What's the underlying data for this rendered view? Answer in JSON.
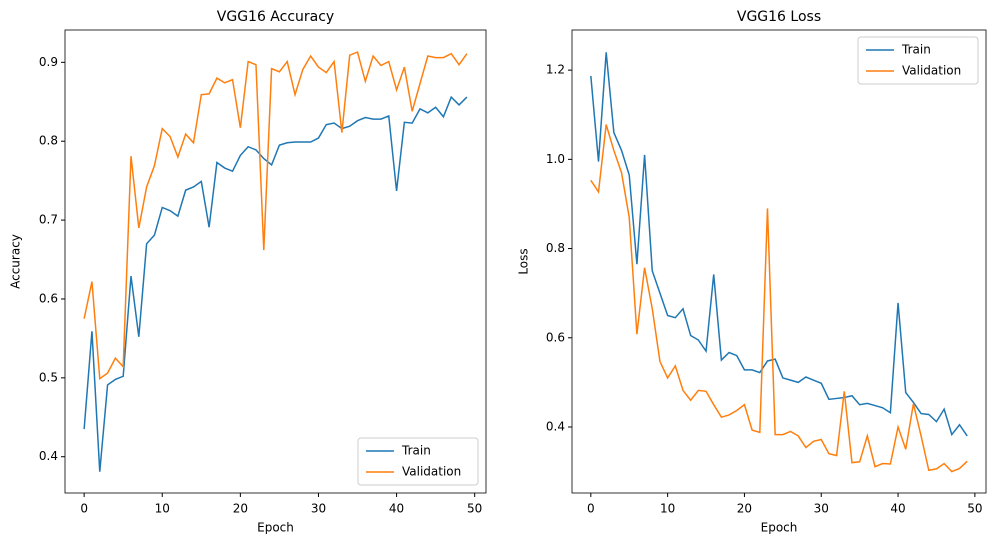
{
  "chart_data": [
    {
      "type": "line",
      "title": "VGG16 Accuracy",
      "x_label": "Epoch",
      "y_label": "Accuracy",
      "x": [
        0,
        1,
        2,
        3,
        4,
        5,
        6,
        7,
        8,
        9,
        10,
        11,
        12,
        13,
        14,
        15,
        16,
        17,
        18,
        19,
        20,
        21,
        22,
        23,
        24,
        25,
        26,
        27,
        28,
        29,
        30,
        31,
        32,
        33,
        34,
        35,
        36,
        37,
        38,
        39,
        40,
        41,
        42,
        43,
        44,
        45,
        46,
        47,
        48,
        49
      ],
      "series": [
        {
          "name": "Train",
          "color": "#1f77b4",
          "values": [
            0.435,
            0.559,
            0.381,
            0.491,
            0.498,
            0.502,
            0.629,
            0.552,
            0.67,
            0.681,
            0.716,
            0.712,
            0.705,
            0.738,
            0.742,
            0.749,
            0.691,
            0.773,
            0.766,
            0.762,
            0.782,
            0.793,
            0.789,
            0.778,
            0.77,
            0.795,
            0.798,
            0.799,
            0.799,
            0.799,
            0.804,
            0.821,
            0.823,
            0.816,
            0.819,
            0.826,
            0.83,
            0.828,
            0.828,
            0.832,
            0.737,
            0.824,
            0.823,
            0.841,
            0.836,
            0.843,
            0.831,
            0.856,
            0.846,
            0.856
          ]
        },
        {
          "name": "Validation",
          "color": "#ff7f0e",
          "values": [
            0.575,
            0.622,
            0.499,
            0.506,
            0.525,
            0.514,
            0.781,
            0.69,
            0.742,
            0.769,
            0.816,
            0.806,
            0.78,
            0.809,
            0.798,
            0.859,
            0.86,
            0.88,
            0.874,
            0.878,
            0.817,
            0.901,
            0.897,
            0.662,
            0.892,
            0.888,
            0.901,
            0.859,
            0.891,
            0.908,
            0.894,
            0.887,
            0.901,
            0.811,
            0.909,
            0.913,
            0.876,
            0.908,
            0.896,
            0.901,
            0.865,
            0.894,
            0.838,
            0.873,
            0.908,
            0.906,
            0.906,
            0.911,
            0.897,
            0.911
          ]
        }
      ],
      "xlim": [
        -2.45,
        51.45
      ],
      "xticks": [
        0,
        10,
        20,
        30,
        40,
        50
      ],
      "ylim": [
        0.354,
        0.941
      ],
      "yticks": [
        0.4,
        0.5,
        0.6,
        0.7,
        0.8,
        0.9
      ],
      "legend": "lower right"
    },
    {
      "type": "line",
      "title": "VGG16 Loss",
      "x_label": "Epoch",
      "y_label": "Loss",
      "x": [
        0,
        1,
        2,
        3,
        4,
        5,
        6,
        7,
        8,
        9,
        10,
        11,
        12,
        13,
        14,
        15,
        16,
        17,
        18,
        19,
        20,
        21,
        22,
        23,
        24,
        25,
        26,
        27,
        28,
        29,
        30,
        31,
        32,
        33,
        34,
        35,
        36,
        37,
        38,
        39,
        40,
        41,
        42,
        43,
        44,
        45,
        46,
        47,
        48,
        49
      ],
      "series": [
        {
          "name": "Train",
          "color": "#1f77b4",
          "values": [
            1.187,
            0.995,
            1.24,
            1.06,
            1.02,
            0.965,
            0.765,
            1.01,
            0.75,
            0.7,
            0.65,
            0.645,
            0.665,
            0.605,
            0.595,
            0.57,
            0.742,
            0.55,
            0.567,
            0.56,
            0.528,
            0.528,
            0.522,
            0.548,
            0.552,
            0.51,
            0.505,
            0.5,
            0.512,
            0.505,
            0.498,
            0.462,
            0.464,
            0.466,
            0.47,
            0.45,
            0.453,
            0.448,
            0.443,
            0.432,
            0.678,
            0.477,
            0.455,
            0.43,
            0.428,
            0.412,
            0.44,
            0.383,
            0.405,
            0.38
          ]
        },
        {
          "name": "Validation",
          "color": "#ff7f0e",
          "values": [
            0.953,
            0.927,
            1.078,
            1.02,
            0.97,
            0.87,
            0.608,
            0.757,
            0.665,
            0.547,
            0.51,
            0.537,
            0.482,
            0.46,
            0.482,
            0.48,
            0.45,
            0.422,
            0.427,
            0.437,
            0.45,
            0.393,
            0.388,
            0.89,
            0.383,
            0.383,
            0.39,
            0.38,
            0.354,
            0.368,
            0.372,
            0.34,
            0.336,
            0.48,
            0.32,
            0.322,
            0.38,
            0.311,
            0.318,
            0.317,
            0.4,
            0.35,
            0.452,
            0.38,
            0.303,
            0.306,
            0.318,
            0.3,
            0.307,
            0.323
          ]
        }
      ],
      "xlim": [
        -2.45,
        51.45
      ],
      "xticks": [
        0,
        10,
        20,
        30,
        40,
        50
      ],
      "ylim": [
        0.252,
        1.29
      ],
      "yticks": [
        0.4,
        0.6,
        0.8,
        {
          "value": 1,
          "label": "1.0"
        },
        1.2
      ],
      "legend": "upper right"
    }
  ]
}
